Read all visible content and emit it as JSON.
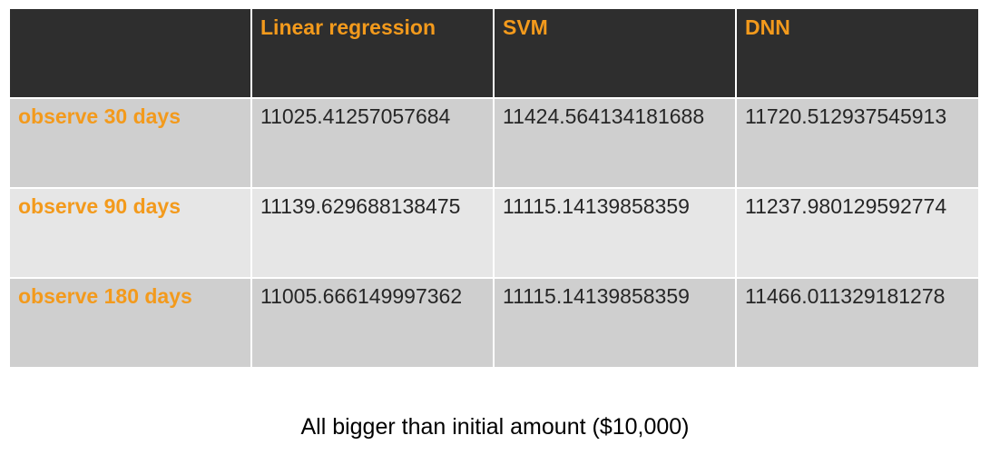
{
  "colors": {
    "header_bg": "#2e2e2e",
    "accent_orange": "#f39a1c",
    "row_dark": "#cfcfcf",
    "row_light": "#e6e6e6",
    "value_text": "#262626"
  },
  "table": {
    "corner": "",
    "columns": [
      "Linear regression",
      "SVM",
      "DNN"
    ],
    "rows": [
      {
        "label": "observe 30 days",
        "values": [
          "11025.41257057684",
          "11424.564134181688",
          "11720.512937545913"
        ]
      },
      {
        "label": "observe 90 days",
        "values": [
          "11139.629688138475",
          "11115.14139858359",
          "11237.980129592774"
        ]
      },
      {
        "label": "observe 180 days",
        "values": [
          "11005.666149997362",
          "11115.14139858359",
          "11466.011329181278"
        ]
      }
    ]
  },
  "footer": {
    "note": "All bigger than initial amount ($10,000)"
  }
}
